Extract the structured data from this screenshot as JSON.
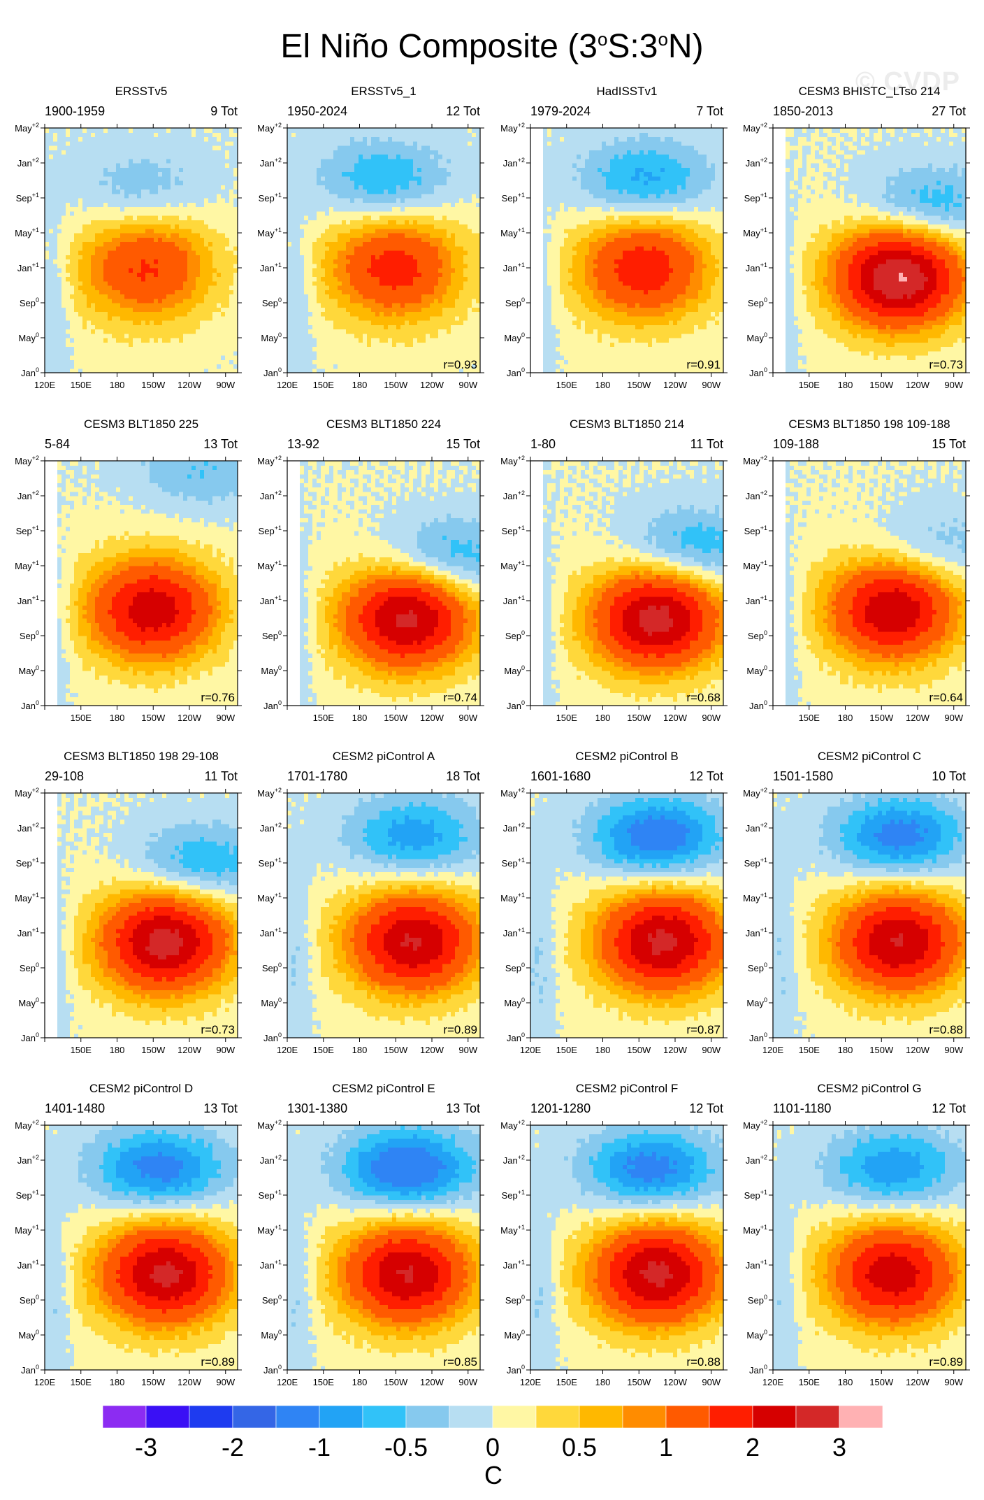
{
  "title_text": "El Niño Composite (3",
  "title_s": "S:3",
  "title_end": "N)",
  "title_sup": "o",
  "watermark": "© CVDP",
  "chart_data": {
    "type": "heatmap",
    "x_ticks": [
      "120E",
      "150E",
      "180",
      "150W",
      "120W",
      "90W"
    ],
    "x_tick_lon": [
      120,
      150,
      180,
      210,
      240,
      270
    ],
    "x_range": [
      120,
      280
    ],
    "y_ticks": [
      {
        "base": "May",
        "sup": "+2",
        "m": 28
      },
      {
        "base": "Jan",
        "sup": "+2",
        "m": 24
      },
      {
        "base": "Sep",
        "sup": "+1",
        "m": 20
      },
      {
        "base": "May",
        "sup": "+1",
        "m": 16
      },
      {
        "base": "Jan",
        "sup": "+1",
        "m": 12
      },
      {
        "base": "Sep",
        "sup": "0",
        "m": 8
      },
      {
        "base": "May",
        "sup": "0",
        "m": 4
      },
      {
        "base": "Jan",
        "sup": "0",
        "m": 0
      }
    ],
    "y_range": [
      0,
      28
    ],
    "colorbar": {
      "colors": [
        "#8c2cf2",
        "#3a10f5",
        "#1e3bf0",
        "#3466e6",
        "#2f84f4",
        "#22a3f5",
        "#31c2f8",
        "#86c9ee",
        "#b7def2",
        "#fff7a4",
        "#ffd83b",
        "#ffb800",
        "#ff8c00",
        "#ff5a00",
        "#ff1e00",
        "#d60000",
        "#d42828",
        "#ffb1b3"
      ],
      "labels": [
        "-3",
        "-2",
        "-1",
        "-0.5",
        "0",
        "0.5",
        "1",
        "2",
        "3"
      ],
      "unit": "C"
    },
    "panels": [
      {
        "title": "ERSSTv5",
        "period": "1900-1959",
        "tot": "9 Tot",
        "r": "",
        "peak": 1.1,
        "lon": 205,
        "t": 12,
        "neg": -0.5,
        "nlon": 200,
        "nt": 21,
        "min_lon": 120
      },
      {
        "title": "ERSSTv5_1",
        "period": "1950-2024",
        "tot": "12 Tot",
        "r": "r=0.93",
        "peak": 1.3,
        "lon": 210,
        "t": 12,
        "neg": -0.8,
        "nlon": 200,
        "nt": 22,
        "min_lon": 120
      },
      {
        "title": "HadISSTv1",
        "period": "1979-2024",
        "tot": "7 Tot",
        "r": "r=0.91",
        "peak": 1.4,
        "lon": 215,
        "t": 12,
        "neg": -0.9,
        "nlon": 215,
        "nt": 22,
        "min_lon": 130
      },
      {
        "title": "CESM3 BHISTC_LTso 214",
        "period": "1850-2013",
        "tot": "27 Tot",
        "r": "r=0.73",
        "peak": 2.6,
        "lon": 225,
        "t": 11,
        "neg": -0.8,
        "nlon": 250,
        "nt": 19,
        "min_lon": 130
      },
      {
        "title": "CESM3 BLT1850 225",
        "period": "5-84",
        "tot": "13 Tot",
        "r": "r=0.76",
        "peak": 1.9,
        "lon": 210,
        "t": 11,
        "neg": -0.5,
        "nlon": 250,
        "nt": 27,
        "min_lon": 130
      },
      {
        "title": "CESM3 BLT1850 224",
        "period": "13-92",
        "tot": "15 Tot",
        "r": "r=0.74",
        "peak": 2.2,
        "lon": 220,
        "t": 10,
        "neg": -0.8,
        "nlon": 255,
        "nt": 17,
        "min_lon": 130
      },
      {
        "title": "CESM3 BLT1850 214",
        "period": "1-80",
        "tot": "11 Tot",
        "r": "r=0.68",
        "peak": 2.3,
        "lon": 225,
        "t": 10,
        "neg": -0.8,
        "nlon": 255,
        "nt": 18,
        "min_lon": 130
      },
      {
        "title": "CESM3 BLT1850 198 109-188",
        "period": "109-188",
        "tot": "15 Tot",
        "r": "r=0.64",
        "peak": 2.0,
        "lon": 220,
        "t": 11,
        "neg": -0.5,
        "nlon": 255,
        "nt": 18,
        "min_lon": 130
      },
      {
        "title": "CESM3 BLT1850 198 29-108",
        "period": "29-108",
        "tot": "11 Tot",
        "r": "r=0.73",
        "peak": 2.3,
        "lon": 220,
        "t": 11,
        "neg": -0.8,
        "nlon": 250,
        "nt": 20,
        "min_lon": 130
      },
      {
        "title": "CESM2 piControl A",
        "period": "1701-1780",
        "tot": "18 Tot",
        "r": "r=0.89",
        "peak": 2.1,
        "lon": 225,
        "t": 11,
        "neg": -0.95,
        "nlon": 225,
        "nt": 23,
        "min_lon": 120
      },
      {
        "title": "CESM2 piControl B",
        "period": "1601-1680",
        "tot": "12 Tot",
        "r": "r=0.87",
        "peak": 2.2,
        "lon": 230,
        "t": 11,
        "neg": -1.3,
        "nlon": 225,
        "nt": 23,
        "min_lon": 120
      },
      {
        "title": "CESM2 piControl C",
        "period": "1501-1580",
        "tot": "10 Tot",
        "r": "r=0.88",
        "peak": 2.1,
        "lon": 225,
        "t": 11,
        "neg": -1.2,
        "nlon": 225,
        "nt": 23,
        "min_lon": 120
      },
      {
        "title": "CESM2 piControl D",
        "period": "1401-1480",
        "tot": "13 Tot",
        "r": "r=0.89",
        "peak": 2.2,
        "lon": 220,
        "t": 11,
        "neg": -1.2,
        "nlon": 215,
        "nt": 23,
        "min_lon": 120
      },
      {
        "title": "CESM2 piControl E",
        "period": "1301-1380",
        "tot": "13 Tot",
        "r": "r=0.85",
        "peak": 2.1,
        "lon": 220,
        "t": 11,
        "neg": -1.4,
        "nlon": 220,
        "nt": 23,
        "min_lon": 120
      },
      {
        "title": "CESM2 piControl F",
        "period": "1201-1280",
        "tot": "12 Tot",
        "r": "r=0.88",
        "peak": 2.2,
        "lon": 225,
        "t": 11,
        "neg": -1.2,
        "nlon": 220,
        "nt": 23,
        "min_lon": 120
      },
      {
        "title": "CESM2 piControl G",
        "period": "1101-1180",
        "tot": "12 Tot",
        "r": "r=0.89",
        "peak": 1.9,
        "lon": 220,
        "t": 11,
        "neg": -1.0,
        "nlon": 220,
        "nt": 23,
        "min_lon": 120
      }
    ]
  }
}
